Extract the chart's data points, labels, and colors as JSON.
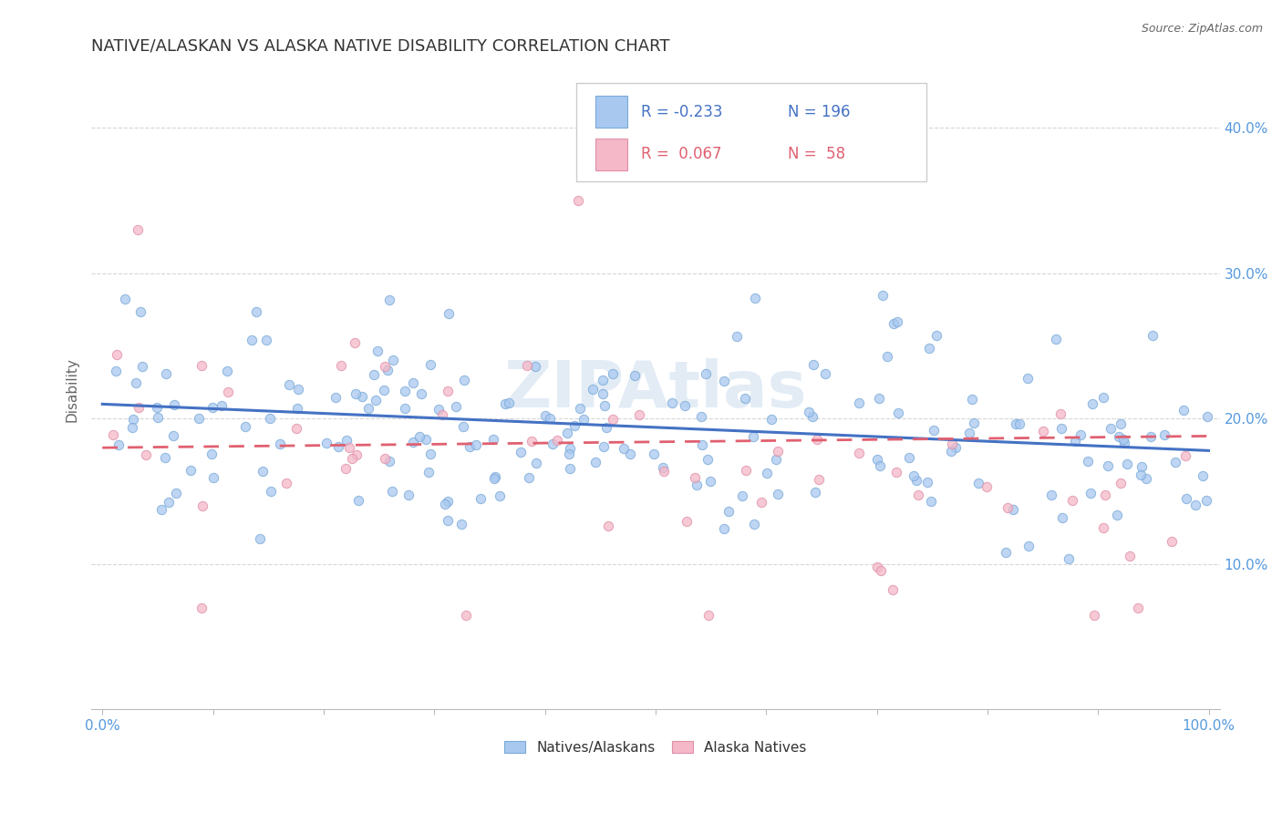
{
  "title": "NATIVE/ALASKAN VS ALASKA NATIVE DISABILITY CORRELATION CHART",
  "source_text": "Source: ZipAtlas.com",
  "ylabel": "Disability",
  "xlim": [
    0.0,
    1.0
  ],
  "ylim": [
    0.0,
    0.44
  ],
  "ytick_values": [
    0.1,
    0.2,
    0.3,
    0.4
  ],
  "ytick_labels": [
    "10.0%",
    "20.0%",
    "30.0%",
    "40.0%"
  ],
  "blue_fill": "#A8C8F0",
  "blue_edge": "#7AAAD8",
  "pink_fill": "#F4B8C8",
  "pink_edge": "#E090A8",
  "blue_line_color": "#4472C4",
  "pink_line_color": "#E06070",
  "legend_R1": "-0.233",
  "legend_N1": "196",
  "legend_R2": "0.067",
  "legend_N2": "58",
  "watermark": "ZIPAtlas",
  "title_color": "#333333",
  "tick_color": "#5599DD",
  "background_color": "#FFFFFF",
  "grid_color": "#CCCCCC",
  "blue_line_start_y": 0.21,
  "blue_line_end_y": 0.178,
  "pink_line_start_y": 0.18,
  "pink_line_end_y": 0.188
}
